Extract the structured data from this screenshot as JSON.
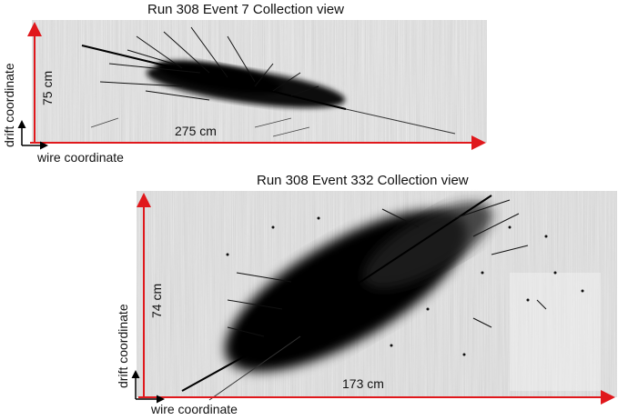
{
  "panels": [
    {
      "title": "Run 308 Event 7 Collection view",
      "vertical_scale": "75 cm",
      "horizontal_scale": "275 cm",
      "axis_y": "drift coordinate",
      "axis_x": "wire coordinate"
    },
    {
      "title": "Run 308 Event 332 Collection view",
      "vertical_scale": "74 cm",
      "horizontal_scale": "173 cm",
      "axis_y": "drift coordinate",
      "axis_x": "wire coordinate"
    }
  ],
  "colors": {
    "scale_arrow": "#e0181c",
    "background": "#e6e6e6",
    "track": "#000000"
  }
}
